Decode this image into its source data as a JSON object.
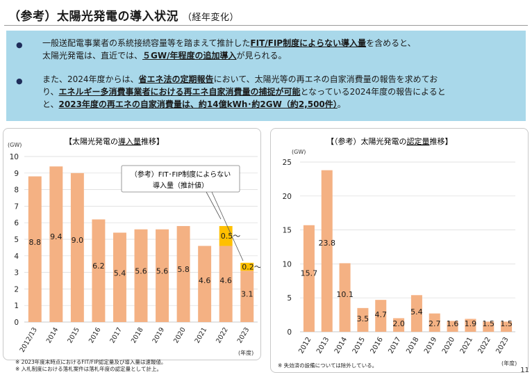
{
  "title": "（参考）太陽光発電の導入状況",
  "subtitle": "（経年変化）",
  "bullets": [
    {
      "bullet_glyph": "●",
      "line1_a": "一般送配電事業者の系統接続容量等を踏まえて推計した",
      "line1_b": "FIT/FIP制度によらない導入量",
      "line1_c": "を含めると、",
      "line2_a": "太陽光発電は、直近では、",
      "line2_b": "５GW/年程度の追加導入",
      "line2_c": "が見られる。"
    },
    {
      "bullet_glyph": "●",
      "line1_a": "また、2024年度からは、",
      "line1_b": "省エネ法の定期報告",
      "line1_c": "において、太陽光等の再エネの自家消費量の報告を求めてお",
      "line2_a": "り、",
      "line2_b": "エネルギー多消費事業者における再エネ自家消費量の捕捉が可能",
      "line2_c": "となっている2024年度の報告によると",
      "line3_a": "と、",
      "line3_b": "2023年度の再エネの自家消費量は、約14億kWh･約2GW（約2,500件）",
      "line3_c": "。"
    }
  ],
  "left_chart_title_a": "【太陽光発電の",
  "left_chart_title_b": "導入量",
  "left_chart_title_c": "推移】",
  "right_chart_title_a": "【（参考）太陽光発電の",
  "right_chart_title_b": "認定量",
  "right_chart_title_c": "推移】",
  "callout_line1": "（参考）FIT･FIP制度によらない",
  "callout_line2": "導入量（推計値）",
  "notes_left": [
    "※ 2023年度末時点におけるFIT/FIP認定量及び導入量は速報値。",
    "※ 入札制度における落札案件は落札年度の認定量として計上。"
  ],
  "note_right": "※ 失効済の設備については除外している。",
  "page_number": "11",
  "colors": {
    "bar": "#f4b183",
    "extra": "#ffc000",
    "panel": "#a9d8ea",
    "grid": "#d9d9d9"
  },
  "chart_data": [
    {
      "type": "bar",
      "title": "【太陽光発電の導入量推移】",
      "ylabel": "(GW)",
      "xlabel": "(年度)",
      "ylim": [
        0,
        10
      ],
      "yticks": [
        0,
        1,
        2,
        3,
        4,
        5,
        6,
        7,
        8,
        9,
        10
      ],
      "categories": [
        "2012/13",
        "2014",
        "2015",
        "2016",
        "2017",
        "2018",
        "2019",
        "2020",
        "2021",
        "2022",
        "2023"
      ],
      "series": [
        {
          "values": [
            8.8,
            9.4,
            9.0,
            6.2,
            5.4,
            5.6,
            5.6,
            5.8,
            4.6,
            4.6,
            3.1
          ],
          "labels": [
            "8.8",
            "9.4",
            "9.0",
            "6.2",
            "5.4",
            "5.6",
            "5.6",
            "5.8",
            "4.6",
            "4.6",
            "3.1"
          ]
        },
        {
          "name": "（参考）FIT･FIP制度によらない導入量（推計値）",
          "values": [
            0,
            0,
            0,
            0,
            0,
            0,
            0,
            0,
            0,
            0.5,
            0.2
          ],
          "labels": [
            "",
            "",
            "",
            "",
            "",
            "",
            "",
            "",
            "",
            "0.5～",
            "0.2～"
          ]
        }
      ]
    },
    {
      "type": "bar",
      "title": "【（参考）太陽光発電の認定量推移】",
      "ylabel": "(GW)",
      "xlabel": "(年度)",
      "ylim": [
        0,
        25
      ],
      "yticks": [
        0,
        5,
        10,
        15,
        20,
        25
      ],
      "categories": [
        "2012",
        "2013",
        "2014",
        "2015",
        "2016",
        "2017",
        "2018",
        "2019",
        "2020",
        "2021",
        "2022",
        "2023"
      ],
      "values": [
        15.7,
        23.8,
        10.1,
        3.5,
        4.7,
        2.0,
        5.4,
        2.7,
        1.6,
        1.9,
        1.5,
        1.5
      ],
      "labels": [
        "15.7",
        "23.8",
        "10.1",
        "3.5",
        "4.7",
        "2.0",
        "5.4",
        "2.7",
        "1.6",
        "1.9",
        "1.5",
        "1.5"
      ]
    }
  ]
}
